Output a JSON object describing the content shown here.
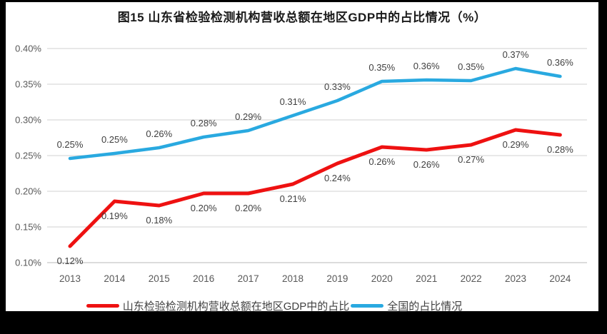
{
  "title": "图15  山东省检验检测机构营收总额在地区GDP中的占比情况（%）",
  "colors": {
    "shandong_series": "#ee1111",
    "national_series": "#29a9e0",
    "gridline": "#d9d9d9",
    "axis_line": "#c6c6c6",
    "axis_text": "#595959",
    "data_label_text": "#3f3f3f",
    "frame": "#000000",
    "background": "#ffffff"
  },
  "chart_data": {
    "type": "line",
    "title": "图15  山东省检验检测机构营收总额在地区GDP中的占比情况（%）",
    "xlabel": "",
    "ylabel": "",
    "grid": "horizontal",
    "legend_position": "bottom",
    "categories": [
      "2013",
      "2014",
      "2015",
      "2016",
      "2017",
      "2018",
      "2019",
      "2020",
      "2021",
      "2022",
      "2023",
      "2024"
    ],
    "ylim": [
      0.1,
      0.4
    ],
    "ytick_step": 0.05,
    "ytick_labels": [
      "0.10%",
      "0.15%",
      "0.20%",
      "0.25%",
      "0.30%",
      "0.35%",
      "0.40%"
    ],
    "series": [
      {
        "name": "山东检验检测机构营收总额在地区GDP中的占比",
        "color_key": "shandong_series",
        "label_placement": "below",
        "values": [
          0.123,
          0.186,
          0.18,
          0.197,
          0.197,
          0.21,
          0.239,
          0.262,
          0.258,
          0.265,
          0.286,
          0.279
        ],
        "point_labels": [
          "0.12%",
          "0.19%",
          "0.18%",
          "0.20%",
          "0.20%",
          "0.21%",
          "0.24%",
          "0.26%",
          "0.26%",
          "0.27%",
          "0.29%",
          "0.28%"
        ]
      },
      {
        "name": "全国的占比情况",
        "color_key": "national_series",
        "label_placement": "above",
        "values": [
          0.246,
          0.253,
          0.261,
          0.276,
          0.285,
          0.306,
          0.327,
          0.354,
          0.356,
          0.355,
          0.372,
          0.361
        ],
        "point_labels": [
          "0.25%",
          "0.25%",
          "0.26%",
          "0.28%",
          "0.29%",
          "0.31%",
          "0.33%",
          "0.35%",
          "0.36%",
          "0.35%",
          "0.37%",
          "0.36%"
        ]
      }
    ]
  }
}
